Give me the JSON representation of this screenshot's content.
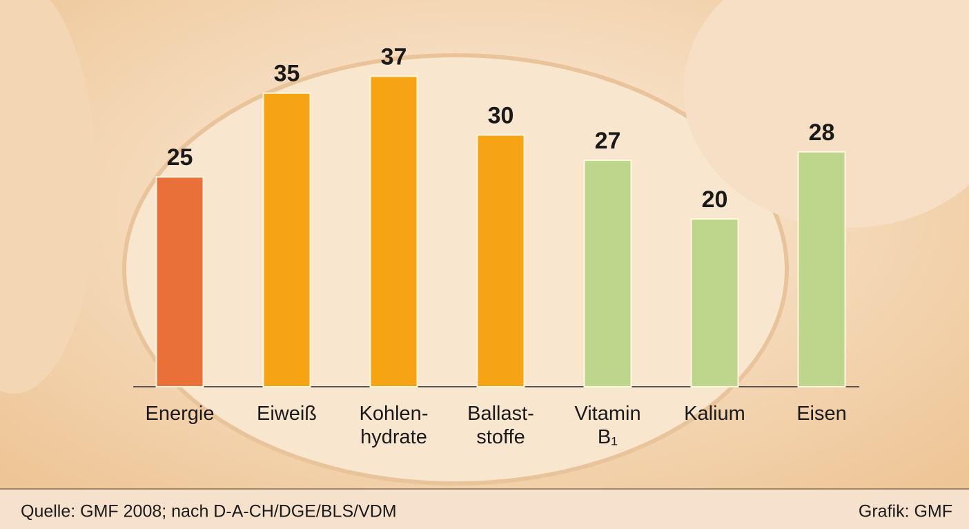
{
  "chart_data": {
    "type": "bar",
    "categories": [
      "Energie",
      "Eiweiß",
      "Kohlen-\nhydrate",
      "Ballast-\nstoffe",
      "Vitamin\nB₁",
      "Kalium",
      "Eisen"
    ],
    "values": [
      25,
      35,
      37,
      30,
      27,
      20,
      28
    ],
    "colors": [
      "#ea703a",
      "#f6a414",
      "#f6a414",
      "#f6a414",
      "#bed68c",
      "#bed68c",
      "#bed68c"
    ],
    "source": "Quelle: GMF 2008; nach D-A-CH/DGE/BLS/VDM",
    "credit": "Grafik: GMF"
  }
}
